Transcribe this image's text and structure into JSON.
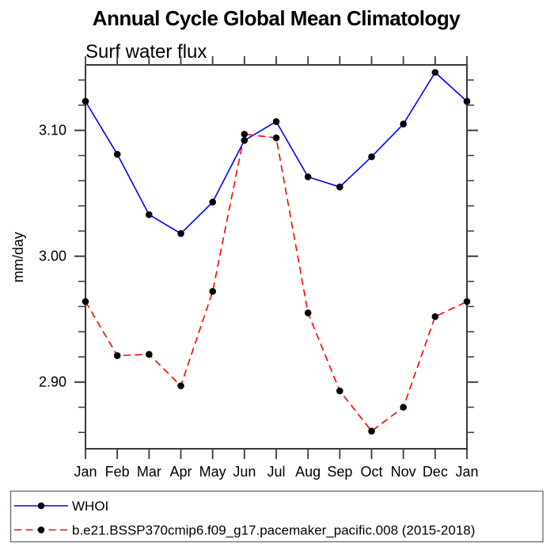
{
  "chart_data": {
    "type": "line",
    "title": "Annual Cycle Global Mean Climatology",
    "subtitle": "Surf water flux",
    "xlabel": "",
    "ylabel": "mm/day",
    "categories": [
      "Jan",
      "Feb",
      "Mar",
      "Apr",
      "May",
      "Jun",
      "Jul",
      "Aug",
      "Sep",
      "Oct",
      "Nov",
      "Dec",
      "Jan"
    ],
    "ylim": [
      2.847,
      3.152
    ],
    "y_major_ticks": [
      {
        "value": 2.9,
        "label": "2.90"
      },
      {
        "value": 3.0,
        "label": "3.00"
      },
      {
        "value": 3.1,
        "label": "3.10"
      }
    ],
    "y_minor_ticks": [
      2.86,
      2.88,
      2.92,
      2.94,
      2.96,
      2.98,
      3.02,
      3.04,
      3.06,
      3.08,
      3.12,
      3.14
    ],
    "grid": false,
    "legend_position": "bottom",
    "axis_color": "#3a3a3a",
    "marker_color": "#000000",
    "series": [
      {
        "name": "WHOI",
        "color": "#0000ff",
        "line_style": "solid",
        "marker": "filled-circle",
        "values": [
          3.123,
          3.081,
          3.033,
          3.018,
          3.043,
          3.092,
          3.107,
          3.063,
          3.055,
          3.079,
          3.105,
          3.146,
          3.123
        ]
      },
      {
        "name": "b.e21.BSSP370cmip6.f09_g17.pacemaker_pacific.008 (2015-2018)",
        "color": "#ff0000",
        "line_style": "dashed",
        "marker": "filled-circle",
        "values": [
          2.964,
          2.921,
          2.922,
          2.897,
          2.972,
          3.097,
          3.094,
          2.955,
          2.893,
          2.861,
          2.88,
          2.952,
          2.964
        ]
      }
    ]
  }
}
